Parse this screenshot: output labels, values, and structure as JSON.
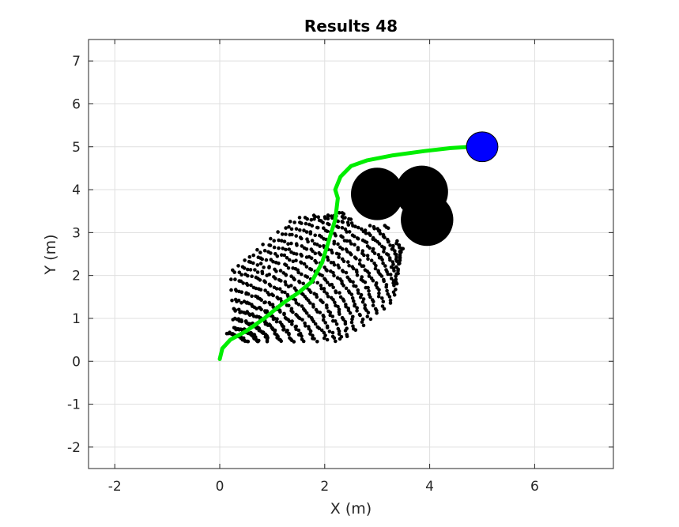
{
  "chart_data": {
    "type": "scatter",
    "title": "Results 48",
    "xlabel": "X (m)",
    "ylabel": "Y (m)",
    "xlim": [
      -2.5,
      7.5
    ],
    "ylim": [
      -2.5,
      7.5
    ],
    "xticks": [
      -2,
      0,
      2,
      4,
      6
    ],
    "yticks": [
      -2,
      -1,
      0,
      1,
      2,
      3,
      4,
      5,
      6,
      7
    ],
    "grid": true,
    "colors": {
      "path": "#00ee00",
      "obstacles": "#000000",
      "goal": "#0000ff",
      "samples": "#000000"
    },
    "obstacles": [
      {
        "x": 3.0,
        "y": 3.9,
        "r": 0.5
      },
      {
        "x": 3.85,
        "y": 3.95,
        "r": 0.5
      },
      {
        "x": 3.95,
        "y": 3.3,
        "r": 0.5
      }
    ],
    "goal": {
      "x": 5.0,
      "y": 5.0,
      "r": 0.3
    },
    "path": {
      "x": [
        0.0,
        0.05,
        0.2,
        0.5,
        0.85,
        1.2,
        1.5,
        1.75,
        1.95,
        2.1,
        2.2,
        2.25,
        2.2,
        2.3,
        2.5,
        2.8,
        3.3,
        3.9,
        4.4,
        4.8
      ],
      "y": [
        0.05,
        0.3,
        0.5,
        0.7,
        1.0,
        1.35,
        1.6,
        1.85,
        2.3,
        2.9,
        3.3,
        3.8,
        4.0,
        4.3,
        4.55,
        4.68,
        4.8,
        4.9,
        4.97,
        5.0
      ]
    }
  }
}
